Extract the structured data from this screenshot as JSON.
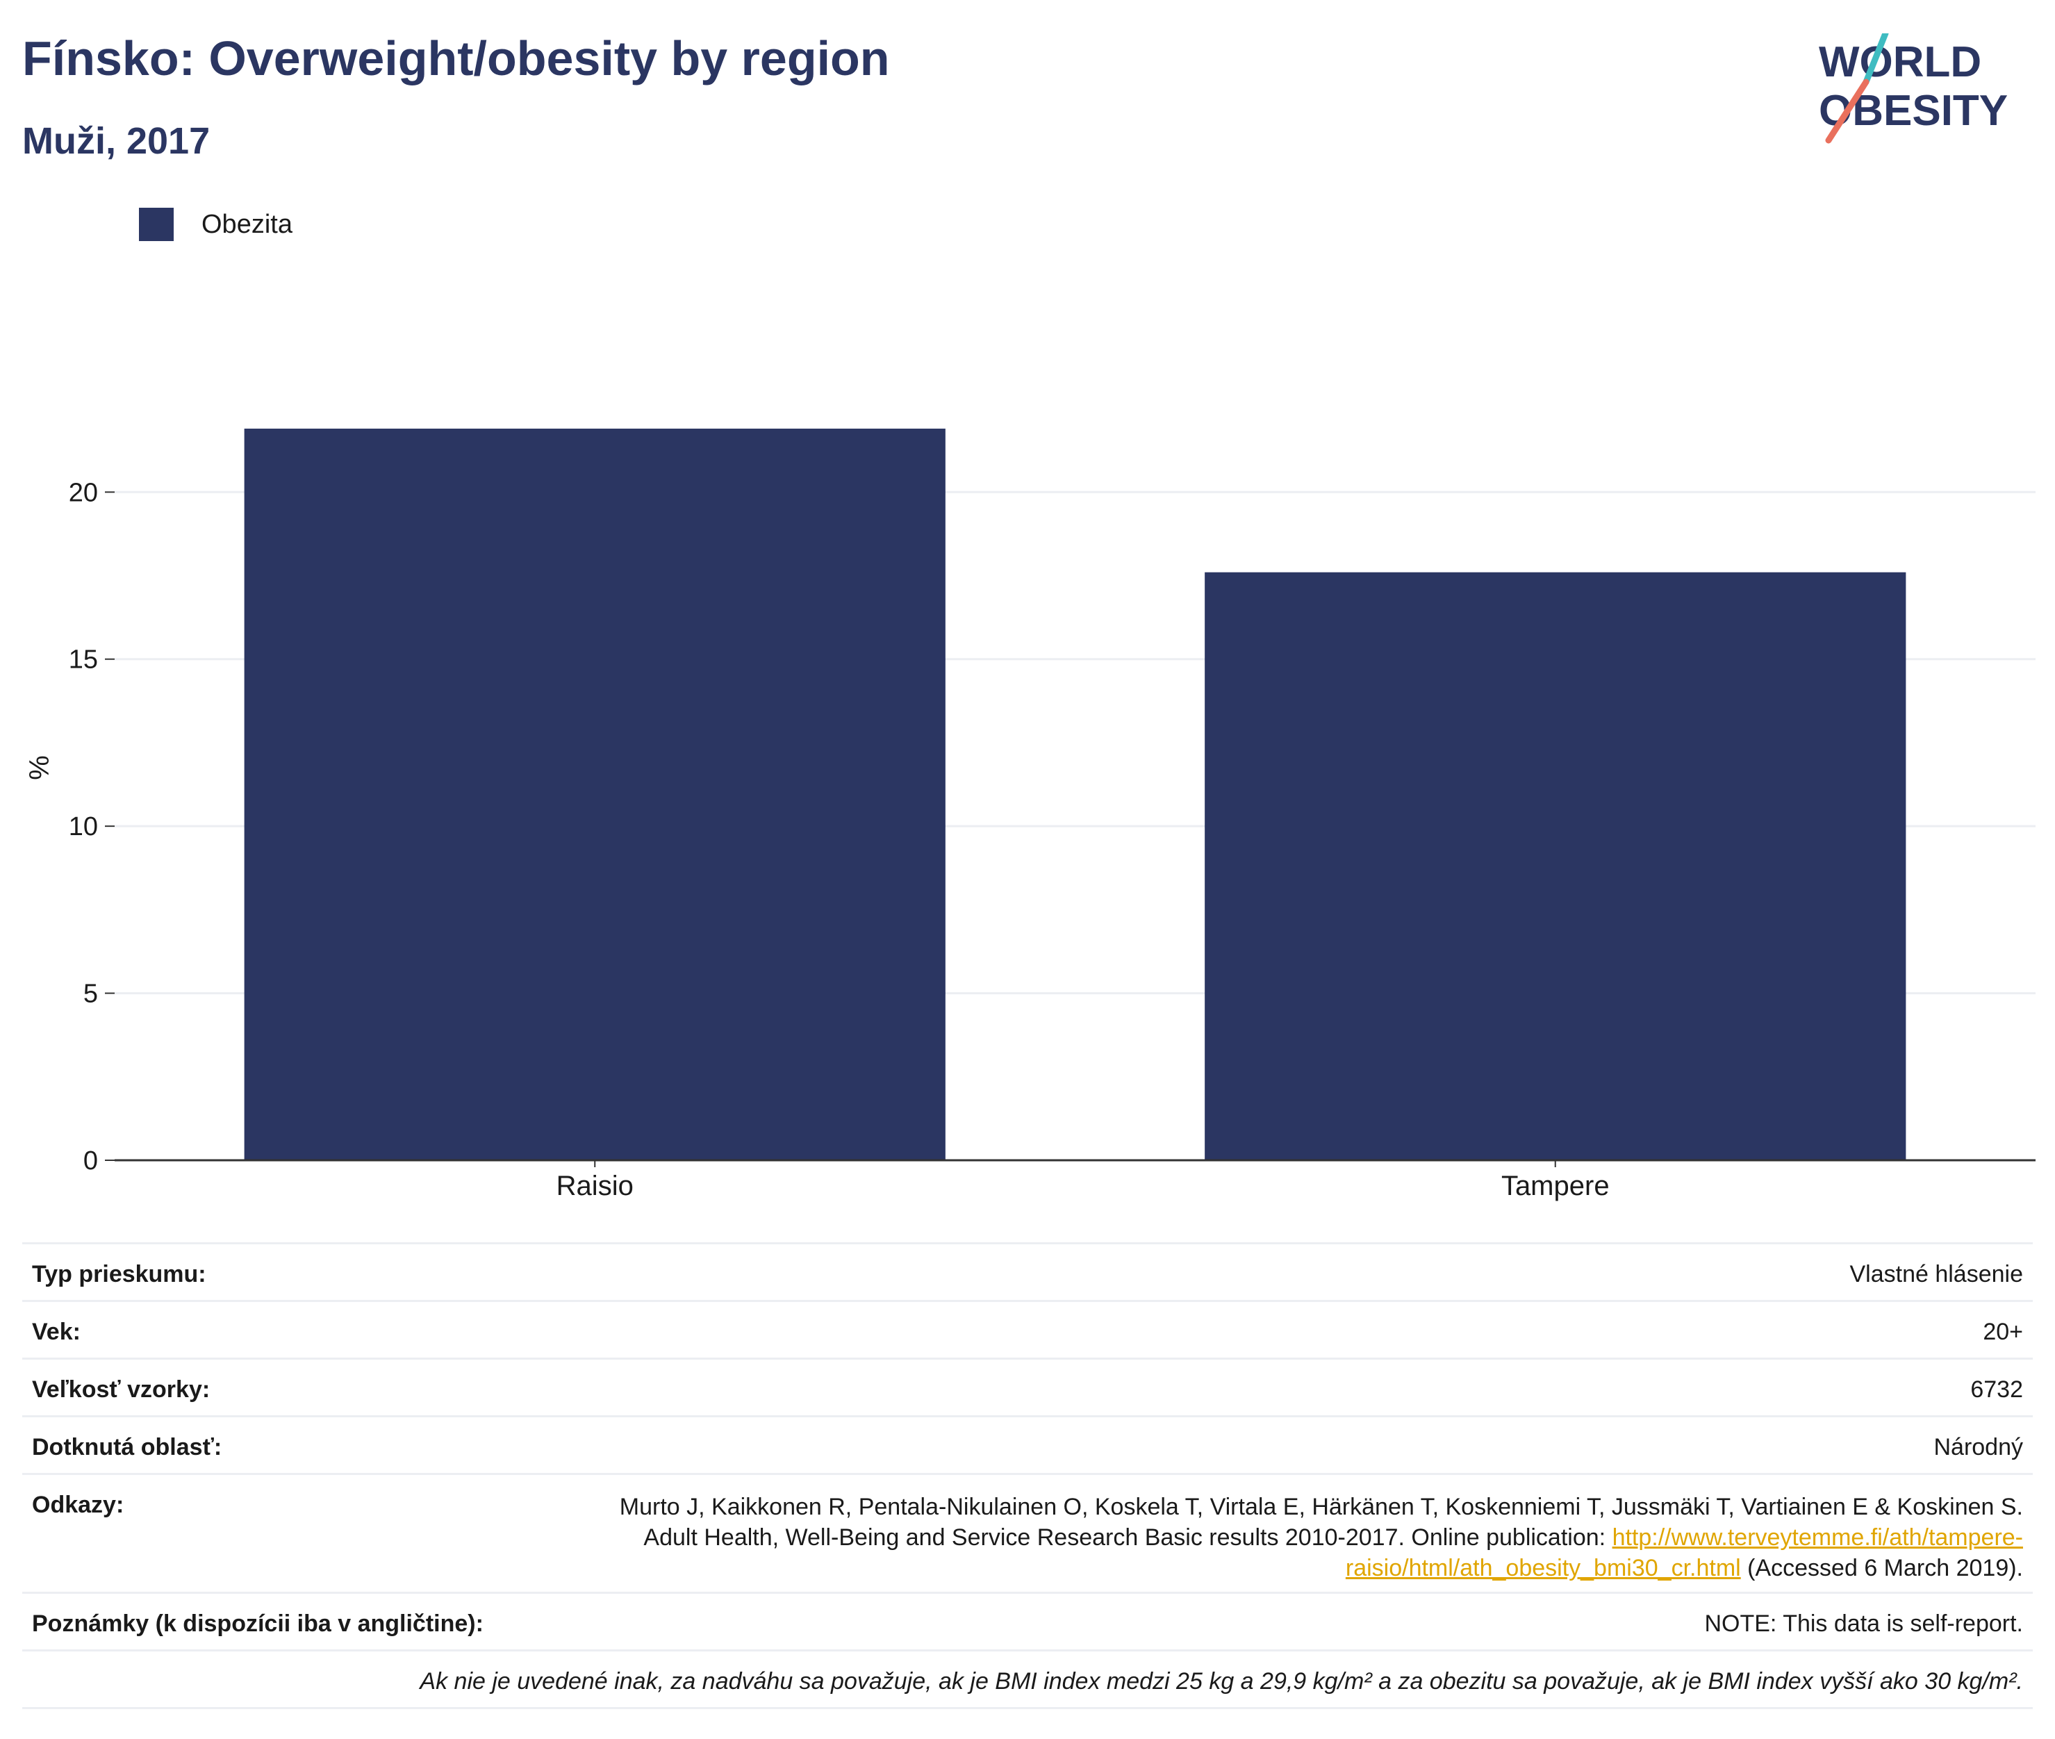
{
  "header": {
    "title": "Fínsko: Overweight/obesity by region",
    "subtitle": "Muži, 2017"
  },
  "logo": {
    "line1": "WORLD",
    "line2": "OBESITY",
    "colors": {
      "text": "#2b3662",
      "slash_teal": "#3fbcc1",
      "slash_coral": "#e9705d"
    }
  },
  "colors": {
    "bar": "#2b3662",
    "grid": "#eceef2",
    "axis": "#333333",
    "link": "#e0a500"
  },
  "chart_data": {
    "type": "bar",
    "categories": [
      "Raisio",
      "Tampere"
    ],
    "series": [
      {
        "name": "Obezita",
        "values": [
          21.9,
          17.6
        ]
      }
    ],
    "ylabel": "%",
    "xlabel": "",
    "ylim": [
      0,
      23.5
    ],
    "yticks": [
      0,
      5,
      10,
      15,
      20
    ],
    "grid": true,
    "legend": "top-left"
  },
  "info": {
    "survey_type": {
      "label": "Typ prieskumu:",
      "value": "Vlastné hlásenie"
    },
    "age": {
      "label": "Vek:",
      "value": "20+"
    },
    "sample_size": {
      "label": "Veľkosť vzorky:",
      "value": "6732"
    },
    "area": {
      "label": "Dotknutá oblasť:",
      "value": "Národný"
    },
    "references": {
      "label": "Odkazy:",
      "line1": "Murto J, Kaikkonen R, Pentala-Nikulainen O, Koskela T, Virtala E, Härkänen T, Koskenniemi T, Jussmäki T, Vartiainen E & Koskinen S.",
      "line2_text": "Adult Health, Well-Being and Service Research Basic results 2010-2017. Online publication: ",
      "link_part1": "http://www.terveytemme.fi/ath/tampere-",
      "link_part2": "raisio/html/ath_obesity_bmi30_cr.html",
      "accessed": " (Accessed 6 March 2019)."
    },
    "notes": {
      "label": "Poznámky (k dispozícii iba v angličtine):",
      "value": "NOTE: This data is self-report."
    },
    "definition": "Ak nie je uvedené inak, za nadváhu sa považuje, ak je BMI index medzi 25 kg a 29,9 kg/m² a za obezitu sa považuje, ak je BMI index vyšší ako 30 kg/m²."
  }
}
